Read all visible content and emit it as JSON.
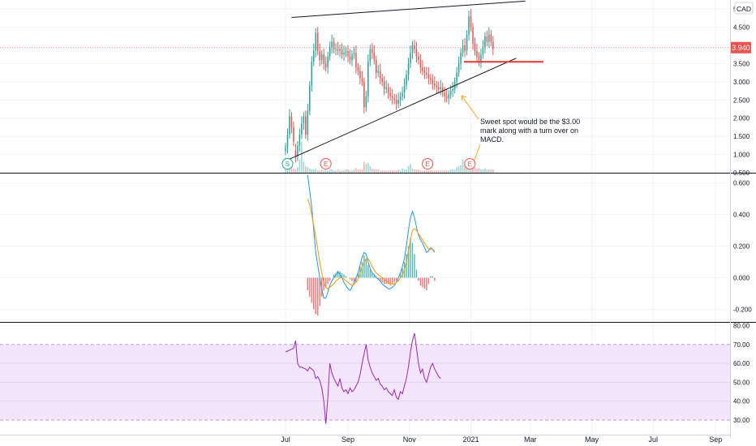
{
  "currency": "CAD",
  "annotation": "Sweet spot would be the $3.00 mark along with a turn over on MACD.",
  "x_labels": [
    "Jul",
    "Sep",
    "Nov",
    "2021",
    "Mar",
    "May",
    "Jul",
    "Sep"
  ],
  "colors": {
    "up": "#26a69a",
    "down": "#ef5350",
    "macd": "#2196f3",
    "signal": "#ff9800",
    "rsi": "#9c27b0",
    "rsi_band": "#f3e5fc",
    "grid": "#f0f3fa",
    "axis_text": "#131722",
    "horizontal_line": "#e53935",
    "arrow": "#f5a623"
  },
  "events": [
    {
      "label": "S",
      "date": "2020-07-03"
    },
    {
      "label": "E",
      "date": "2020-08-10"
    },
    {
      "label": "E",
      "date": "2020-11-19"
    },
    {
      "label": "E",
      "date": "2020-12-31"
    }
  ],
  "chart_data": [
    {
      "type": "candlestick",
      "panel": "price",
      "currency": "CAD",
      "last_price": "3.940",
      "y_ticks": [
        "5.000",
        "4.500",
        "4.000",
        "3.500",
        "3.000",
        "2.500",
        "2.000",
        "1.500",
        "1.000",
        "0.500"
      ],
      "ylim": [
        0.5,
        5.25
      ],
      "x_ticks": [
        "Jul",
        "Sep",
        "Nov",
        "2021",
        "Mar",
        "May",
        "Jul",
        "Sep"
      ],
      "series": [
        {
          "name": "",
          "start": "2020-07-01",
          "step_days": 2,
          "close": [
            1.2,
            1.55,
            2.05,
            1.75,
            1.35,
            0.95,
            1.25,
            1.55,
            1.85,
            2.05,
            1.55,
            2.2,
            2.9,
            3.55,
            3.85,
            4.35,
            3.85,
            3.6,
            3.75,
            3.5,
            3.4,
            3.7,
            3.95,
            4.1,
            3.9,
            3.9,
            3.85,
            3.9,
            3.75,
            3.8,
            3.85,
            3.7,
            3.6,
            3.75,
            3.8,
            3.4,
            3.3,
            3.1,
            3.0,
            2.3,
            2.6,
            3.55,
            3.9,
            3.8,
            3.6,
            3.25,
            3.3,
            3.1,
            3.0,
            2.8,
            2.85,
            2.7,
            2.6,
            2.55,
            2.5,
            2.4,
            2.5,
            2.6,
            2.7,
            2.9,
            3.2,
            3.5,
            3.8,
            4.0,
            3.9,
            3.7,
            3.6,
            3.4,
            3.3,
            3.25,
            3.2,
            3.1,
            3.05,
            2.95,
            2.9,
            2.85,
            2.8,
            2.85,
            2.7,
            2.6,
            2.55,
            2.65,
            2.75,
            2.8,
            3.0,
            3.25,
            3.5,
            3.8,
            4.0,
            3.85,
            4.3,
            4.8,
            4.5,
            4.05,
            3.85,
            3.7,
            3.55,
            3.75,
            3.95,
            4.25,
            4.1,
            4.3,
            4.1,
            3.9
          ],
          "open": [
            1.1,
            1.2,
            1.55,
            2.05,
            1.75,
            1.1,
            0.95,
            1.25,
            1.55,
            1.85,
            2.05,
            1.55,
            2.2,
            2.9,
            3.55,
            3.85,
            4.35,
            3.85,
            3.6,
            3.75,
            3.5,
            3.4,
            3.7,
            3.95,
            4.1,
            3.9,
            3.9,
            3.85,
            3.9,
            3.75,
            3.8,
            3.85,
            3.7,
            3.6,
            3.75,
            3.8,
            3.4,
            3.3,
            3.1,
            3.0,
            2.3,
            2.6,
            3.55,
            3.9,
            3.8,
            3.6,
            3.25,
            3.3,
            3.1,
            3.0,
            2.8,
            2.85,
            2.7,
            2.6,
            2.55,
            2.5,
            2.4,
            2.5,
            2.6,
            2.7,
            2.9,
            3.2,
            3.5,
            3.8,
            4.0,
            3.9,
            3.7,
            3.6,
            3.4,
            3.3,
            3.25,
            3.2,
            3.1,
            3.05,
            2.95,
            2.9,
            2.85,
            2.8,
            2.85,
            2.7,
            2.6,
            2.55,
            2.65,
            2.75,
            2.8,
            3.0,
            3.25,
            3.5,
            3.8,
            4.0,
            3.85,
            4.3,
            4.8,
            4.5,
            4.05,
            3.85,
            3.7,
            3.55,
            3.75,
            3.95,
            4.25,
            4.1,
            4.3,
            4.1
          ],
          "volume": [
            1.4,
            0.8,
            0.7,
            0.5,
            0.4,
            0.3,
            0.5,
            1.2,
            2.8,
            1.0,
            0.6,
            0.5,
            0.4,
            0.3,
            0.3,
            0.4,
            0.2,
            0.2,
            0.3,
            0.2,
            0.2,
            0.2,
            0.3,
            0.3,
            0.2,
            0.2,
            0.3,
            0.2,
            0.2,
            0.2,
            0.3,
            0.3,
            0.2,
            0.2,
            0.3,
            0.4,
            0.3,
            0.3,
            0.3,
            1.0,
            0.8,
            0.9,
            0.6,
            0.4,
            0.3,
            0.3,
            0.3,
            0.2,
            0.2,
            0.2,
            0.2,
            0.2,
            0.2,
            0.2,
            0.2,
            0.2,
            0.3,
            0.2,
            0.4,
            0.3,
            0.3,
            0.6,
            0.8,
            0.4,
            0.3,
            0.3,
            0.3,
            0.2,
            0.2,
            0.2,
            0.2,
            0.2,
            0.2,
            0.2,
            0.2,
            0.2,
            0.2,
            0.2,
            0.2,
            0.2,
            0.2,
            0.2,
            0.3,
            0.3,
            0.3,
            0.5,
            0.6,
            0.7,
            1.2,
            0.7,
            0.9,
            1.0,
            0.8,
            0.6,
            0.5,
            0.4,
            0.4,
            0.3,
            0.3,
            0.4,
            0.3,
            0.3,
            0.3,
            0.3
          ]
        }
      ],
      "trendlines": [
        {
          "from": {
            "date": "2020-07-07",
            "value": 4.77
          },
          "to": {
            "date": "2021-02-24",
            "value": 5.22
          }
        },
        {
          "from": {
            "date": "2020-07-03",
            "value": 0.85
          },
          "to": {
            "date": "2021-02-15",
            "value": 3.65
          }
        }
      ],
      "horizontal_line": {
        "from": "2020-12-25",
        "to": "2021-03-14",
        "value": 3.55
      }
    },
    {
      "type": "line",
      "panel": "macd",
      "y_ticks": [
        "0.600",
        "0.400",
        "0.200",
        "0.000",
        "-0.200"
      ],
      "ylim": [
        -0.28,
        0.66
      ],
      "series": [
        {
          "name": "",
          "start": "2020-07-23",
          "step_days": 2,
          "values": [
            0.65,
            0.55,
            0.45,
            0.3,
            0.16,
            0.08,
            0.0,
            -0.07,
            -0.13,
            -0.13,
            -0.09,
            -0.05,
            -0.02,
            0.0,
            0.02,
            0.04,
            0.02,
            0.0,
            -0.03,
            -0.05,
            -0.07,
            -0.08,
            -0.06,
            -0.03,
            0.0,
            0.03,
            0.08,
            0.13,
            0.16,
            0.15,
            0.1,
            0.06,
            0.03,
            0.02,
            0.0,
            -0.01,
            -0.02,
            -0.04,
            -0.05,
            -0.06,
            -0.07,
            -0.07,
            -0.06,
            -0.05,
            -0.03,
            0.0,
            0.03,
            0.07,
            0.12,
            0.2,
            0.3,
            0.38,
            0.42,
            0.38,
            0.32,
            0.27,
            0.24,
            0.22,
            0.19,
            0.16,
            0.17,
            0.19,
            0.18,
            0.16
          ]
        },
        {
          "name": "",
          "start": "2020-07-23",
          "step_days": 2,
          "values": [
            0.5,
            0.46,
            0.4,
            0.33,
            0.26,
            0.18,
            0.1,
            0.03,
            -0.03,
            -0.06,
            -0.07,
            -0.06,
            -0.05,
            -0.04,
            -0.02,
            -0.01,
            0.0,
            0.0,
            -0.01,
            -0.02,
            -0.03,
            -0.04,
            -0.05,
            -0.04,
            -0.03,
            -0.01,
            0.03,
            0.07,
            0.1,
            0.12,
            0.12,
            0.1,
            0.07,
            0.05,
            0.03,
            0.02,
            0.01,
            0.0,
            -0.01,
            -0.02,
            -0.03,
            -0.04,
            -0.04,
            -0.04,
            -0.03,
            -0.02,
            0.0,
            0.02,
            0.05,
            0.1,
            0.17,
            0.24,
            0.3,
            0.31,
            0.3,
            0.28,
            0.26,
            0.24,
            0.22,
            0.2,
            0.18,
            0.18,
            0.18,
            0.17
          ]
        }
      ],
      "histogram": {
        "start": "2020-07-23",
        "step_days": 2,
        "values": [
          -0.08,
          -0.12,
          -0.16,
          -0.2,
          -0.23,
          -0.24,
          -0.18,
          -0.12,
          -0.08,
          -0.06,
          -0.04,
          -0.02,
          0.0,
          0.02,
          0.03,
          0.04,
          0.04,
          0.03,
          0.02,
          0.01,
          0.0,
          -0.01,
          -0.02,
          -0.03,
          -0.03,
          0.03,
          0.07,
          0.1,
          0.14,
          0.12,
          0.08,
          0.05,
          0.03,
          0.02,
          0.01,
          -0.01,
          -0.02,
          -0.03,
          -0.04,
          -0.04,
          -0.04,
          -0.05,
          -0.04,
          -0.03,
          -0.02,
          0.0,
          0.03,
          0.06,
          0.1,
          0.15,
          0.2,
          0.25,
          0.22,
          0.15,
          0.05,
          -0.02,
          -0.05,
          -0.06,
          -0.07,
          -0.08,
          -0.04,
          0.01,
          0.01,
          -0.02
        ]
      }
    },
    {
      "type": "line",
      "panel": "rsi",
      "y_ticks": [
        "80.00",
        "70.00",
        "60.00",
        "50.00",
        "40.00",
        "30.00"
      ],
      "ylim": [
        27,
        81.5
      ],
      "band": [
        30,
        70
      ],
      "series": [
        {
          "name": "",
          "start": "2020-07-01",
          "step_days": 2,
          "values": [
            66,
            66.5,
            67,
            67.5,
            68,
            72,
            60,
            58,
            58,
            57.5,
            57,
            56,
            58,
            57,
            56,
            52,
            53,
            51,
            47,
            40,
            28,
            42,
            60,
            55,
            52,
            50,
            48,
            52,
            47,
            45,
            46,
            44,
            47,
            45,
            46,
            48,
            50,
            54,
            60,
            65,
            70,
            62,
            58,
            55,
            53,
            51,
            52,
            49,
            48,
            46,
            47,
            45,
            44,
            43,
            46,
            42,
            41,
            45,
            44,
            48,
            52,
            58,
            66,
            72,
            76,
            68,
            60,
            55,
            57,
            52,
            50,
            54,
            58,
            60,
            57,
            55,
            53,
            52
          ]
        }
      ]
    }
  ]
}
